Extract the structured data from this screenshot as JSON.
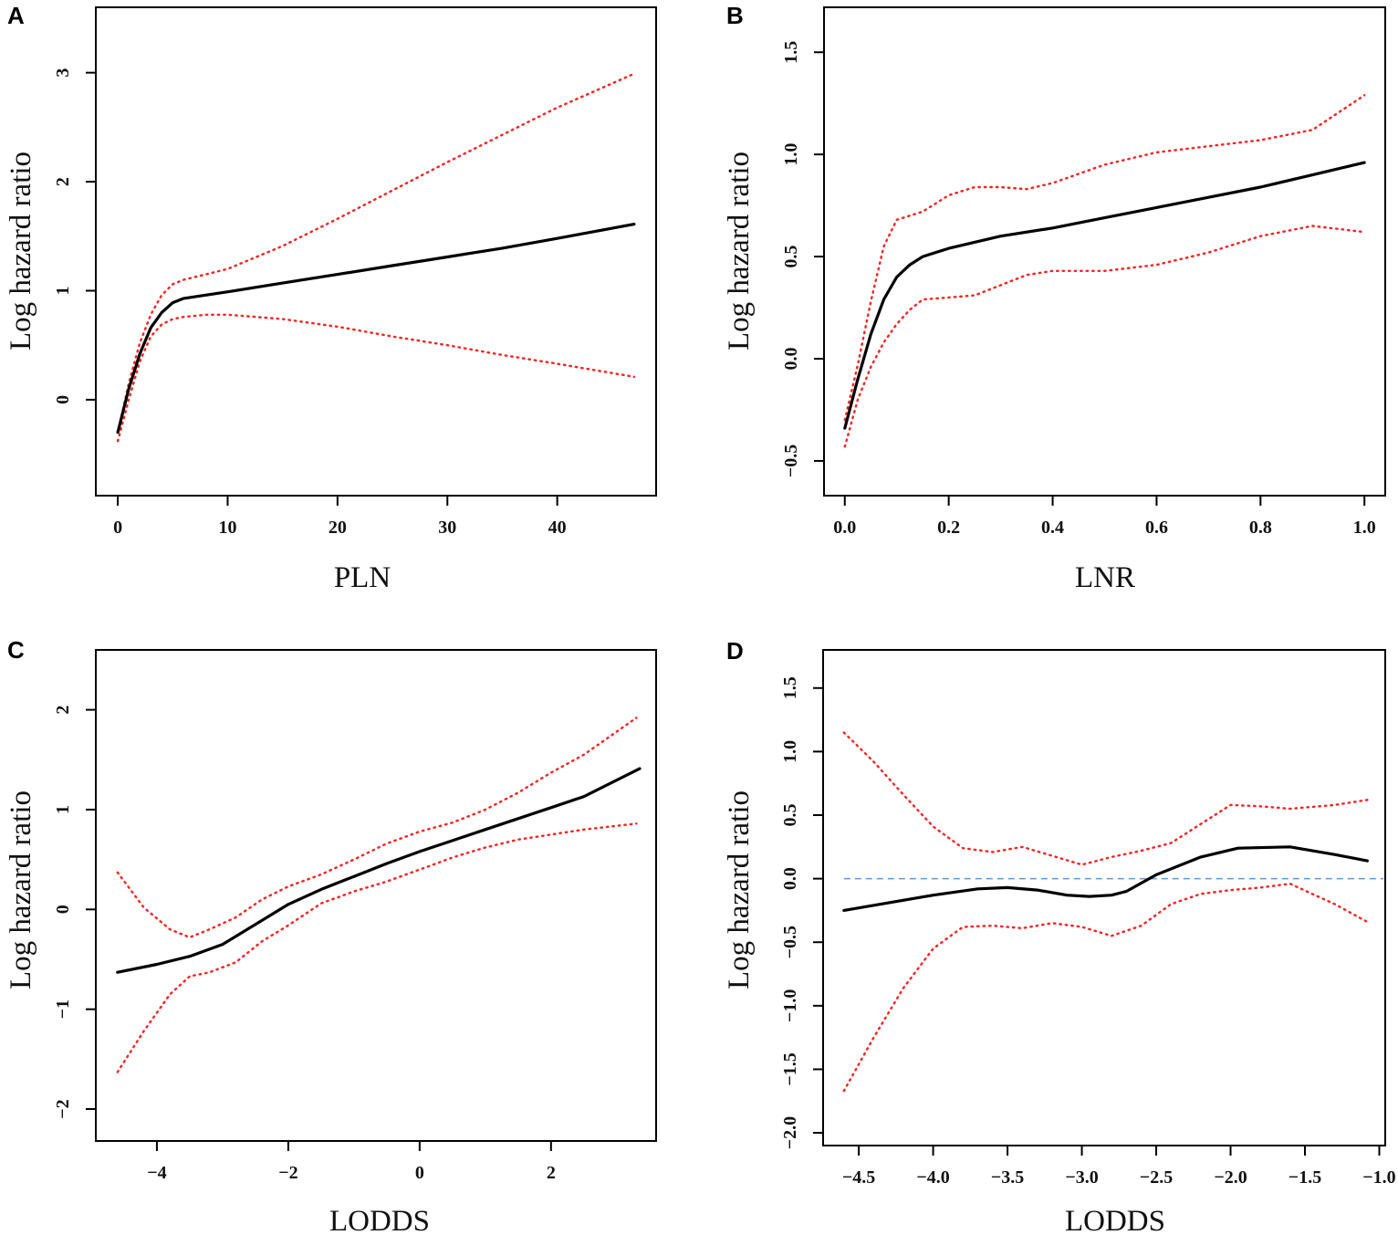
{
  "chart_data": [
    {
      "panel": "A",
      "type": "line",
      "xlabel": "PLN",
      "ylabel": "Log hazard ratio",
      "xlim": [
        -2,
        49
      ],
      "ylim": [
        -0.88,
        3.6
      ],
      "xticks": [
        0,
        10,
        20,
        30,
        40
      ],
      "xtick_labels": [
        "0",
        "10",
        "20",
        "30",
        "40"
      ],
      "yticks": [
        0,
        1,
        2,
        3
      ],
      "ytick_labels": [
        "0",
        "1",
        "2",
        "3"
      ],
      "series": [
        {
          "name": "estimate",
          "style": "solid",
          "color": "#000000",
          "x": [
            0,
            1,
            2,
            3,
            4,
            5,
            6,
            8,
            10,
            15,
            20,
            25,
            30,
            35,
            40,
            47
          ],
          "y": [
            -0.3,
            0.1,
            0.42,
            0.66,
            0.8,
            0.89,
            0.93,
            0.96,
            0.99,
            1.07,
            1.15,
            1.23,
            1.31,
            1.39,
            1.48,
            1.61
          ]
        },
        {
          "name": "upper 95% CI",
          "style": "dotted",
          "color": "#ff2020",
          "x": [
            0,
            1,
            2,
            3,
            4,
            5,
            6,
            8,
            10,
            15,
            20,
            25,
            30,
            35,
            40,
            47
          ],
          "y": [
            -0.3,
            0.15,
            0.52,
            0.78,
            0.96,
            1.06,
            1.1,
            1.15,
            1.2,
            1.41,
            1.66,
            1.92,
            2.18,
            2.43,
            2.68,
            2.99
          ]
        },
        {
          "name": "lower 95% CI",
          "style": "dotted",
          "color": "#ff2020",
          "x": [
            0,
            1,
            2,
            3,
            4,
            5,
            6,
            8,
            10,
            15,
            20,
            25,
            30,
            35,
            40,
            47
          ],
          "y": [
            -0.38,
            0.0,
            0.35,
            0.58,
            0.69,
            0.74,
            0.76,
            0.78,
            0.78,
            0.74,
            0.67,
            0.58,
            0.5,
            0.41,
            0.33,
            0.21
          ]
        }
      ]
    },
    {
      "panel": "B",
      "type": "line",
      "xlabel": "LNR",
      "ylabel": "Log hazard ratio",
      "xlim": [
        -0.04,
        1.04
      ],
      "ylim": [
        -0.67,
        1.72
      ],
      "xticks": [
        0.0,
        0.2,
        0.4,
        0.6,
        0.8,
        1.0
      ],
      "xtick_labels": [
        "0.0",
        "0.2",
        "0.4",
        "0.6",
        "0.8",
        "1.0"
      ],
      "yticks": [
        -0.5,
        0.0,
        0.5,
        1.0,
        1.5
      ],
      "ytick_labels": [
        "−0.5",
        "0.0",
        "0.5",
        "1.0",
        "1.5"
      ],
      "series": [
        {
          "name": "estimate",
          "style": "solid",
          "color": "#000000",
          "x": [
            0.0,
            0.025,
            0.05,
            0.075,
            0.1,
            0.125,
            0.15,
            0.2,
            0.3,
            0.4,
            0.5,
            0.6,
            0.7,
            0.8,
            0.9,
            1.0
          ],
          "y": [
            -0.34,
            -0.1,
            0.12,
            0.29,
            0.4,
            0.46,
            0.5,
            0.54,
            0.6,
            0.64,
            0.69,
            0.74,
            0.79,
            0.84,
            0.9,
            0.96
          ]
        },
        {
          "name": "upper 95% CI",
          "style": "dotted",
          "color": "#ff2020",
          "x": [
            0.0,
            0.025,
            0.05,
            0.075,
            0.1,
            0.15,
            0.2,
            0.25,
            0.3,
            0.35,
            0.4,
            0.5,
            0.6,
            0.7,
            0.8,
            0.9,
            1.0
          ],
          "y": [
            -0.3,
            -0.03,
            0.28,
            0.55,
            0.68,
            0.72,
            0.8,
            0.84,
            0.84,
            0.83,
            0.86,
            0.95,
            1.01,
            1.04,
            1.07,
            1.12,
            1.29
          ]
        },
        {
          "name": "lower 95% CI",
          "style": "dotted",
          "color": "#ff2020",
          "x": [
            0.0,
            0.025,
            0.05,
            0.075,
            0.1,
            0.125,
            0.15,
            0.2,
            0.25,
            0.3,
            0.35,
            0.4,
            0.5,
            0.6,
            0.7,
            0.8,
            0.9,
            1.0
          ],
          "y": [
            -0.43,
            -0.2,
            -0.04,
            0.08,
            0.17,
            0.24,
            0.29,
            0.3,
            0.31,
            0.36,
            0.41,
            0.43,
            0.43,
            0.46,
            0.52,
            0.6,
            0.65,
            0.62
          ]
        }
      ]
    },
    {
      "panel": "C",
      "type": "line",
      "xlabel": "LODDS",
      "ylabel": "Log hazard ratio",
      "xlim": [
        -4.93,
        3.6
      ],
      "ylim": [
        -2.32,
        2.6
      ],
      "xticks": [
        -4,
        -2,
        0,
        2
      ],
      "xtick_labels": [
        "−4",
        "−2",
        "0",
        "2"
      ],
      "yticks": [
        -2,
        -1,
        0,
        1,
        2
      ],
      "ytick_labels": [
        "−2",
        "−1",
        "0",
        "1",
        "2"
      ],
      "series": [
        {
          "name": "estimate",
          "style": "solid",
          "color": "#000000",
          "x": [
            -4.6,
            -4.0,
            -3.5,
            -3.0,
            -2.5,
            -2.0,
            -1.5,
            -1.0,
            -0.5,
            0.0,
            0.5,
            1.0,
            1.5,
            2.0,
            2.5,
            3.35
          ],
          "y": [
            -0.63,
            -0.55,
            -0.47,
            -0.35,
            -0.15,
            0.05,
            0.2,
            0.33,
            0.46,
            0.58,
            0.69,
            0.8,
            0.91,
            1.02,
            1.13,
            1.41
          ]
        },
        {
          "name": "upper 95% CI",
          "style": "dotted",
          "color": "#ff2020",
          "x": [
            -4.6,
            -4.2,
            -3.8,
            -3.5,
            -3.2,
            -2.8,
            -2.4,
            -2.0,
            -1.5,
            -1.0,
            -0.5,
            0.0,
            0.5,
            1.0,
            1.5,
            2.0,
            2.5,
            3.3
          ],
          "y": [
            0.37,
            0.02,
            -0.2,
            -0.28,
            -0.2,
            -0.08,
            0.1,
            0.23,
            0.35,
            0.5,
            0.66,
            0.78,
            0.87,
            1.0,
            1.17,
            1.37,
            1.55,
            1.92
          ]
        },
        {
          "name": "lower 95% CI",
          "style": "dotted",
          "color": "#ff2020",
          "x": [
            -4.6,
            -4.2,
            -3.8,
            -3.5,
            -3.2,
            -2.8,
            -2.4,
            -2.0,
            -1.5,
            -1.0,
            -0.5,
            0.0,
            0.5,
            1.0,
            1.5,
            2.0,
            2.5,
            3.3
          ],
          "y": [
            -1.63,
            -1.22,
            -0.85,
            -0.67,
            -0.63,
            -0.53,
            -0.32,
            -0.16,
            0.06,
            0.18,
            0.28,
            0.4,
            0.52,
            0.62,
            0.7,
            0.75,
            0.8,
            0.86
          ]
        }
      ]
    },
    {
      "panel": "D",
      "type": "line",
      "xlabel": "LODDS",
      "ylabel": "Log hazard ratio",
      "xlim": [
        -4.74,
        -0.96
      ],
      "ylim": [
        -2.1,
        1.8
      ],
      "xticks": [
        -4.5,
        -4.0,
        -3.5,
        -3.0,
        -2.5,
        -2.0,
        -1.5,
        -1.0
      ],
      "xtick_labels": [
        "−4.5",
        "−4.0",
        "−3.5",
        "−3.0",
        "−2.5",
        "−2.0",
        "−1.5",
        "−1.0"
      ],
      "yticks": [
        -2.0,
        -1.5,
        -1.0,
        -0.5,
        0.0,
        0.5,
        1.0,
        1.5
      ],
      "ytick_labels": [
        "−2.0",
        "−1.5",
        "−1.0",
        "−0.5",
        "0.0",
        "0.5",
        "1.0",
        "1.5"
      ],
      "reference_line": {
        "y": 0.0,
        "style": "dashed",
        "color": "#5b9bd5"
      },
      "series": [
        {
          "name": "estimate",
          "style": "solid",
          "color": "#000000",
          "x": [
            -4.6,
            -4.3,
            -4.0,
            -3.7,
            -3.5,
            -3.3,
            -3.1,
            -2.95,
            -2.8,
            -2.7,
            -2.5,
            -2.2,
            -1.95,
            -1.6,
            -1.3,
            -1.08
          ],
          "y": [
            -0.25,
            -0.19,
            -0.13,
            -0.08,
            -0.07,
            -0.09,
            -0.13,
            -0.14,
            -0.13,
            -0.1,
            0.03,
            0.17,
            0.24,
            0.25,
            0.19,
            0.14
          ]
        },
        {
          "name": "upper 95% CI",
          "style": "dotted",
          "color": "#ff2020",
          "x": [
            -4.6,
            -4.4,
            -4.2,
            -4.0,
            -3.8,
            -3.6,
            -3.4,
            -3.2,
            -3.0,
            -2.8,
            -2.6,
            -2.4,
            -2.2,
            -2.0,
            -1.8,
            -1.6,
            -1.3,
            -1.08
          ],
          "y": [
            1.15,
            0.92,
            0.66,
            0.41,
            0.24,
            0.21,
            0.25,
            0.18,
            0.11,
            0.17,
            0.22,
            0.28,
            0.43,
            0.58,
            0.57,
            0.55,
            0.58,
            0.62
          ]
        },
        {
          "name": "lower 95% CI",
          "style": "dotted",
          "color": "#ff2020",
          "x": [
            -4.6,
            -4.4,
            -4.2,
            -4.0,
            -3.8,
            -3.6,
            -3.4,
            -3.2,
            -3.0,
            -2.8,
            -2.6,
            -2.4,
            -2.2,
            -2.0,
            -1.8,
            -1.6,
            -1.3,
            -1.08
          ],
          "y": [
            -1.67,
            -1.25,
            -0.86,
            -0.55,
            -0.38,
            -0.37,
            -0.39,
            -0.35,
            -0.38,
            -0.45,
            -0.37,
            -0.2,
            -0.12,
            -0.09,
            -0.07,
            -0.04,
            -0.2,
            -0.34
          ]
        }
      ]
    }
  ]
}
